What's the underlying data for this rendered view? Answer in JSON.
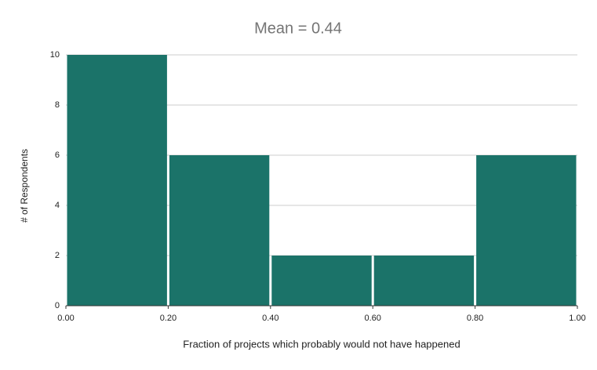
{
  "chart_data": {
    "type": "histogram",
    "title": "Mean = 0.44",
    "xlabel": "Fraction of projects which probably would not have happened",
    "ylabel": "# of Respondents",
    "bins": [
      0,
      0.2,
      0.4,
      0.6,
      0.8,
      1.0
    ],
    "values": [
      10,
      6,
      2,
      2,
      6
    ],
    "color": "#1b7369",
    "xlim": [
      0,
      1
    ],
    "ylim": [
      0,
      10
    ],
    "xticks": [
      {
        "value": 0,
        "label": "0.00"
      },
      {
        "value": 0.2,
        "label": "0.20"
      },
      {
        "value": 0.4,
        "label": "0.40"
      },
      {
        "value": 0.6,
        "label": "0.60"
      },
      {
        "value": 0.8,
        "label": "0.80"
      },
      {
        "value": 1.0,
        "label": "1.00"
      }
    ],
    "yticks": [
      0,
      2,
      4,
      6,
      8,
      10
    ],
    "grid": true
  }
}
